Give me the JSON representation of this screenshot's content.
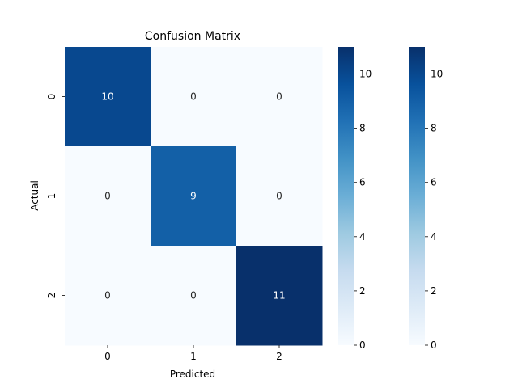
{
  "chart_data": {
    "type": "heatmap",
    "title": "Confusion Matrix",
    "xlabel": "Predicted",
    "ylabel": "Actual",
    "x_categories": [
      "0",
      "1",
      "2"
    ],
    "y_categories": [
      "0",
      "1",
      "2"
    ],
    "values": [
      [
        10,
        0,
        0
      ],
      [
        0,
        9,
        0
      ],
      [
        0,
        0,
        11
      ]
    ],
    "colormap": "Blues",
    "color_range": [
      0,
      11
    ],
    "colorbar_ticks": [
      0,
      2,
      4,
      6,
      8,
      10
    ],
    "colorbar_count": 2,
    "grid": false
  }
}
